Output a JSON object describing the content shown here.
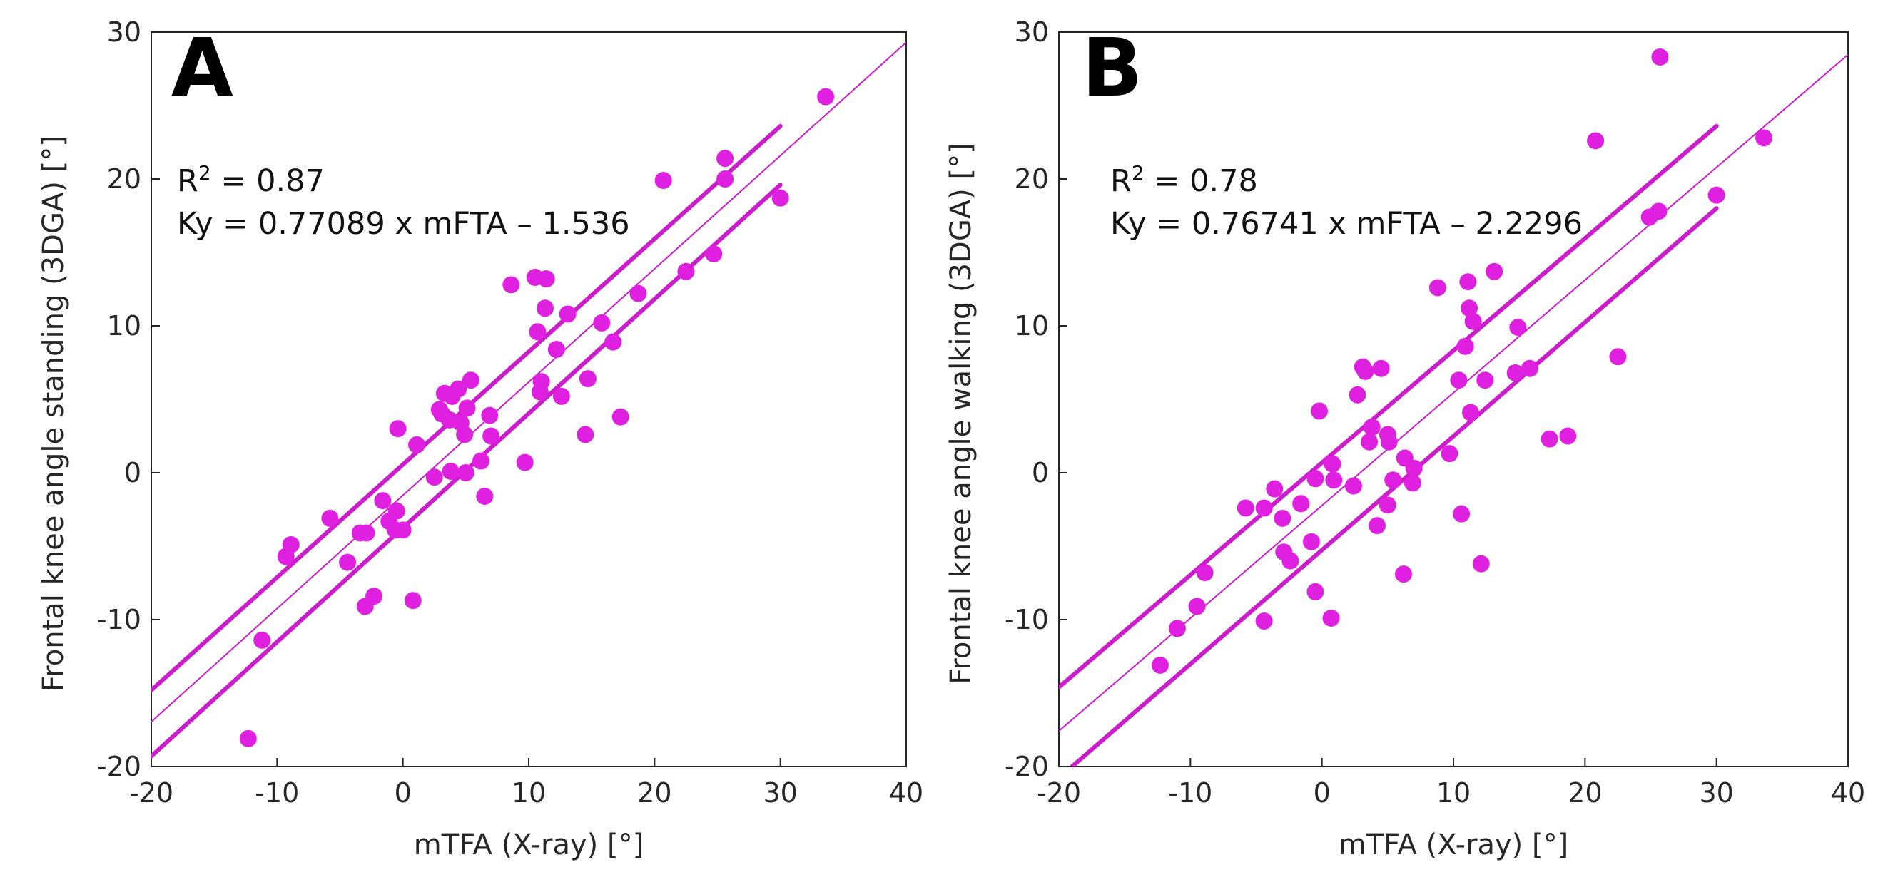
{
  "colors": {
    "marker": "#e020e0",
    "fit": "#cc1ccc",
    "axis": "#262626"
  },
  "chart_data": [
    {
      "type": "scatter",
      "panel_label": "A",
      "xlabel": "mTFA (X-ray) [°]",
      "ylabel": "Frontal knee angle standing (3DGA) [°]",
      "xlim": [
        -20,
        40
      ],
      "ylim": [
        -20,
        30
      ],
      "xticks": [
        -20,
        -10,
        0,
        10,
        20,
        30,
        40
      ],
      "yticks": [
        -20,
        -10,
        0,
        10,
        20,
        30
      ],
      "grid": false,
      "annotations": {
        "r2_label": "R",
        "r2_sup": "2",
        "r2_value": " = 0.87",
        "equation": "Ky = 0.77089 x mFTA – 1.536"
      },
      "fit": {
        "slope": 0.77089,
        "intercept": -1.536,
        "x_range": [
          -20,
          40
        ]
      },
      "ci_bands": [
        {
          "name": "upper",
          "points": [
            [
              -20,
              -14.8
            ],
            [
              30,
              23.6
            ]
          ]
        },
        {
          "name": "lower",
          "points": [
            [
              -20,
              -19.3
            ],
            [
              30,
              19.6
            ]
          ]
        }
      ],
      "points": [
        [
          -12.3,
          -18.1
        ],
        [
          -11.2,
          -11.4
        ],
        [
          -9.3,
          -5.7
        ],
        [
          -8.9,
          -4.9
        ],
        [
          -5.8,
          -3.1
        ],
        [
          -4.4,
          -6.1
        ],
        [
          -3.4,
          -4.1
        ],
        [
          -3.0,
          -9.1
        ],
        [
          -2.9,
          -4.1
        ],
        [
          -2.3,
          -8.4
        ],
        [
          -1.6,
          -1.9
        ],
        [
          -1.1,
          -3.3
        ],
        [
          -0.6,
          -3.9
        ],
        [
          -0.5,
          -2.6
        ],
        [
          -0.4,
          3.0
        ],
        [
          0.0,
          -3.9
        ],
        [
          0.8,
          -8.7
        ],
        [
          1.1,
          1.9
        ],
        [
          2.5,
          -0.3
        ],
        [
          2.9,
          4.3
        ],
        [
          3.1,
          4.0
        ],
        [
          3.3,
          5.4
        ],
        [
          3.7,
          3.6
        ],
        [
          3.8,
          0.1
        ],
        [
          3.9,
          5.2
        ],
        [
          4.4,
          5.7
        ],
        [
          4.6,
          3.4
        ],
        [
          4.9,
          2.6
        ],
        [
          5.0,
          0.0
        ],
        [
          5.1,
          4.4
        ],
        [
          5.4,
          6.3
        ],
        [
          6.2,
          0.8
        ],
        [
          6.5,
          -1.6
        ],
        [
          6.9,
          3.9
        ],
        [
          7.0,
          2.5
        ],
        [
          8.6,
          12.8
        ],
        [
          9.7,
          0.7
        ],
        [
          10.5,
          13.3
        ],
        [
          10.7,
          9.6
        ],
        [
          10.9,
          5.5
        ],
        [
          11.0,
          6.2
        ],
        [
          11.3,
          11.2
        ],
        [
          11.4,
          13.2
        ],
        [
          12.2,
          8.4
        ],
        [
          12.6,
          5.2
        ],
        [
          13.1,
          10.8
        ],
        [
          14.5,
          2.6
        ],
        [
          14.7,
          6.4
        ],
        [
          15.8,
          10.2
        ],
        [
          16.7,
          8.9
        ],
        [
          17.3,
          3.8
        ],
        [
          18.7,
          12.2
        ],
        [
          20.7,
          19.9
        ],
        [
          22.5,
          13.7
        ],
        [
          24.7,
          14.9
        ],
        [
          25.6,
          21.4
        ],
        [
          25.6,
          20.0
        ],
        [
          30.0,
          18.7
        ],
        [
          33.6,
          25.6
        ]
      ]
    },
    {
      "type": "scatter",
      "panel_label": "B",
      "xlabel": "mTFA (X-ray) [°]",
      "ylabel": "Frontal knee angle walking (3DGA) [°]",
      "xlim": [
        -20,
        40
      ],
      "ylim": [
        -20,
        30
      ],
      "xticks": [
        -20,
        -10,
        0,
        10,
        20,
        30,
        40
      ],
      "yticks": [
        -20,
        -10,
        0,
        10,
        20,
        30
      ],
      "grid": false,
      "annotations": {
        "r2_label": "R",
        "r2_sup": "2",
        "r2_value": " = 0.78",
        "equation": "Ky = 0.76741 x mFTA – 2.2296"
      },
      "fit": {
        "slope": 0.76741,
        "intercept": -2.2296,
        "x_range": [
          -20,
          40
        ]
      },
      "ci_bands": [
        {
          "name": "upper",
          "points": [
            [
              -20,
              -14.6
            ],
            [
              30,
              23.6
            ]
          ]
        },
        {
          "name": "lower",
          "points": [
            [
              -19.0,
              -20.0
            ],
            [
              30,
              18.0
            ]
          ]
        }
      ],
      "points": [
        [
          -12.3,
          -13.1
        ],
        [
          -11.0,
          -10.6
        ],
        [
          -9.5,
          -9.1
        ],
        [
          -8.9,
          -6.8
        ],
        [
          -5.8,
          -2.4
        ],
        [
          -4.4,
          -2.4
        ],
        [
          -4.4,
          -10.1
        ],
        [
          -3.6,
          -1.1
        ],
        [
          -3.0,
          -3.1
        ],
        [
          -2.9,
          -5.4
        ],
        [
          -2.4,
          -6.0
        ],
        [
          -1.6,
          -2.1
        ],
        [
          -0.8,
          -4.7
        ],
        [
          -0.5,
          -0.4
        ],
        [
          -0.5,
          -8.1
        ],
        [
          -0.2,
          4.2
        ],
        [
          0.7,
          -9.9
        ],
        [
          0.8,
          0.6
        ],
        [
          0.9,
          -0.5
        ],
        [
          2.4,
          -0.9
        ],
        [
          2.7,
          5.3
        ],
        [
          3.1,
          7.2
        ],
        [
          3.3,
          6.9
        ],
        [
          3.6,
          2.1
        ],
        [
          3.8,
          3.1
        ],
        [
          4.2,
          -3.6
        ],
        [
          4.5,
          7.1
        ],
        [
          5.0,
          2.6
        ],
        [
          5.0,
          -2.2
        ],
        [
          5.1,
          2.1
        ],
        [
          5.4,
          -0.5
        ],
        [
          6.2,
          -6.9
        ],
        [
          6.3,
          1.0
        ],
        [
          6.9,
          -0.7
        ],
        [
          7.0,
          0.3
        ],
        [
          8.8,
          12.6
        ],
        [
          9.7,
          1.3
        ],
        [
          10.4,
          6.3
        ],
        [
          10.6,
          -2.8
        ],
        [
          10.9,
          8.6
        ],
        [
          11.1,
          13.0
        ],
        [
          11.2,
          11.2
        ],
        [
          11.3,
          4.1
        ],
        [
          11.5,
          10.3
        ],
        [
          12.1,
          -6.2
        ],
        [
          12.4,
          6.3
        ],
        [
          13.1,
          13.7
        ],
        [
          14.7,
          6.8
        ],
        [
          14.9,
          9.9
        ],
        [
          15.8,
          7.1
        ],
        [
          17.3,
          2.3
        ],
        [
          18.7,
          2.5
        ],
        [
          20.8,
          22.6
        ],
        [
          22.5,
          7.9
        ],
        [
          24.9,
          17.4
        ],
        [
          25.6,
          17.8
        ],
        [
          25.7,
          28.3
        ],
        [
          30.0,
          18.9
        ],
        [
          33.6,
          22.8
        ]
      ]
    }
  ]
}
